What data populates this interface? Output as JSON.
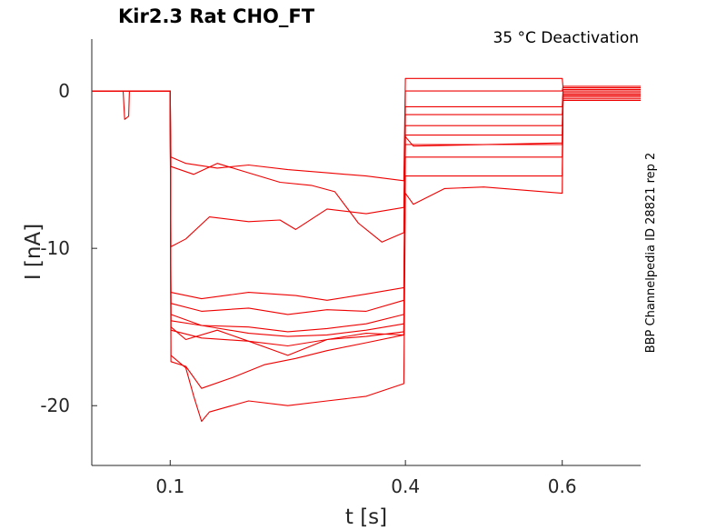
{
  "chart_data": {
    "type": "line",
    "title": "Kir2.3  Rat  CHO_FT",
    "annotation": "35 °C  Deactivation",
    "side_label": "BBP Channelpedia ID 28821 rep 2",
    "xlabel": "t [s]",
    "ylabel": "I [nA]",
    "xlim": [
      0.0,
      0.7
    ],
    "ylim": [
      -23.8,
      3.3
    ],
    "xticks": [
      0.1,
      0.4,
      0.6
    ],
    "xtick_labels": [
      "0.1",
      "0.4",
      "0.6"
    ],
    "yticks": [
      0,
      -10,
      -20
    ],
    "ytick_labels": [
      "0",
      "-10",
      "-20"
    ],
    "trace_color": "#ee0000",
    "series": [
      {
        "values": [
          [
            0.0,
            0
          ],
          [
            0.04,
            0
          ],
          [
            0.042,
            -1.8
          ],
          [
            0.047,
            -1.6
          ],
          [
            0.048,
            0
          ],
          [
            0.1,
            0
          ],
          [
            0.101,
            -4.2
          ],
          [
            0.12,
            -4.6
          ],
          [
            0.16,
            -4.9
          ],
          [
            0.2,
            -4.7
          ],
          [
            0.25,
            -5.0
          ],
          [
            0.3,
            -5.2
          ],
          [
            0.35,
            -5.4
          ],
          [
            0.398,
            -5.7
          ],
          [
            0.4,
            0.8
          ],
          [
            0.6,
            0.8
          ],
          [
            0.601,
            0.2
          ],
          [
            0.7,
            0.2
          ]
        ]
      },
      {
        "values": [
          [
            0.0,
            0
          ],
          [
            0.1,
            0
          ],
          [
            0.101,
            -4.8
          ],
          [
            0.13,
            -5.3
          ],
          [
            0.16,
            -4.6
          ],
          [
            0.2,
            -5.2
          ],
          [
            0.24,
            -5.8
          ],
          [
            0.28,
            -6.0
          ],
          [
            0.31,
            -6.4
          ],
          [
            0.34,
            -8.4
          ],
          [
            0.37,
            -9.6
          ],
          [
            0.398,
            -9.0
          ],
          [
            0.4,
            0.0
          ],
          [
            0.6,
            0.0
          ],
          [
            0.601,
            0.3
          ],
          [
            0.7,
            0.3
          ]
        ]
      },
      {
        "values": [
          [
            0.0,
            0
          ],
          [
            0.1,
            0
          ],
          [
            0.101,
            -9.9
          ],
          [
            0.12,
            -9.4
          ],
          [
            0.15,
            -8.0
          ],
          [
            0.2,
            -8.3
          ],
          [
            0.24,
            -8.2
          ],
          [
            0.26,
            -8.8
          ],
          [
            0.3,
            -7.5
          ],
          [
            0.35,
            -7.8
          ],
          [
            0.398,
            -7.4
          ],
          [
            0.4,
            -1.0
          ],
          [
            0.6,
            -1.0
          ],
          [
            0.601,
            0.1
          ],
          [
            0.7,
            0.1
          ]
        ]
      },
      {
        "values": [
          [
            0.0,
            0
          ],
          [
            0.1,
            0
          ],
          [
            0.101,
            -12.8
          ],
          [
            0.14,
            -13.2
          ],
          [
            0.2,
            -12.8
          ],
          [
            0.26,
            -13.0
          ],
          [
            0.3,
            -13.3
          ],
          [
            0.35,
            -12.9
          ],
          [
            0.398,
            -12.5
          ],
          [
            0.4,
            -1.5
          ],
          [
            0.6,
            -1.5
          ],
          [
            0.601,
            0.0
          ],
          [
            0.7,
            0.0
          ]
        ]
      },
      {
        "values": [
          [
            0.0,
            0
          ],
          [
            0.1,
            0
          ],
          [
            0.101,
            -13.5
          ],
          [
            0.14,
            -14.0
          ],
          [
            0.2,
            -13.8
          ],
          [
            0.25,
            -14.2
          ],
          [
            0.3,
            -13.9
          ],
          [
            0.35,
            -14.0
          ],
          [
            0.398,
            -13.3
          ],
          [
            0.4,
            -2.2
          ],
          [
            0.6,
            -2.2
          ],
          [
            0.601,
            -0.1
          ],
          [
            0.7,
            -0.1
          ]
        ]
      },
      {
        "values": [
          [
            0.0,
            0
          ],
          [
            0.1,
            0
          ],
          [
            0.101,
            -14.2
          ],
          [
            0.14,
            -14.9
          ],
          [
            0.2,
            -15.0
          ],
          [
            0.25,
            -15.3
          ],
          [
            0.3,
            -15.1
          ],
          [
            0.35,
            -14.8
          ],
          [
            0.398,
            -14.2
          ],
          [
            0.4,
            -2.8
          ],
          [
            0.6,
            -2.8
          ],
          [
            0.601,
            -0.2
          ],
          [
            0.7,
            -0.2
          ]
        ]
      },
      {
        "values": [
          [
            0.0,
            0
          ],
          [
            0.1,
            0
          ],
          [
            0.101,
            -14.6
          ],
          [
            0.14,
            -14.9
          ],
          [
            0.2,
            -15.4
          ],
          [
            0.25,
            -15.6
          ],
          [
            0.3,
            -15.5
          ],
          [
            0.35,
            -15.2
          ],
          [
            0.398,
            -14.8
          ],
          [
            0.4,
            -3.4
          ],
          [
            0.6,
            -3.4
          ],
          [
            0.601,
            -0.3
          ],
          [
            0.7,
            -0.3
          ]
        ]
      },
      {
        "values": [
          [
            0.0,
            0
          ],
          [
            0.1,
            0
          ],
          [
            0.101,
            -15.0
          ],
          [
            0.12,
            -15.8
          ],
          [
            0.16,
            -15.2
          ],
          [
            0.2,
            -15.9
          ],
          [
            0.25,
            -16.2
          ],
          [
            0.3,
            -15.8
          ],
          [
            0.35,
            -15.6
          ],
          [
            0.398,
            -15.3
          ],
          [
            0.4,
            -4.2
          ],
          [
            0.6,
            -4.2
          ],
          [
            0.601,
            -0.3
          ],
          [
            0.7,
            -0.3
          ]
        ]
      },
      {
        "values": [
          [
            0.0,
            0
          ],
          [
            0.1,
            0
          ],
          [
            0.101,
            -15.2
          ],
          [
            0.14,
            -15.7
          ],
          [
            0.2,
            -15.9
          ],
          [
            0.25,
            -16.8
          ],
          [
            0.3,
            -15.8
          ],
          [
            0.35,
            -15.4
          ],
          [
            0.398,
            -15.5
          ],
          [
            0.4,
            -5.4
          ],
          [
            0.6,
            -5.4
          ],
          [
            0.601,
            -0.4
          ],
          [
            0.7,
            -0.4
          ]
        ]
      },
      {
        "values": [
          [
            0.0,
            0
          ],
          [
            0.1,
            0
          ],
          [
            0.101,
            -17.2
          ],
          [
            0.12,
            -17.5
          ],
          [
            0.14,
            -18.9
          ],
          [
            0.18,
            -18.2
          ],
          [
            0.22,
            -17.4
          ],
          [
            0.26,
            -17.0
          ],
          [
            0.3,
            -16.5
          ],
          [
            0.35,
            -16.0
          ],
          [
            0.398,
            -15.5
          ],
          [
            0.4,
            -2.9
          ],
          [
            0.41,
            -3.5
          ],
          [
            0.6,
            -3.3
          ],
          [
            0.601,
            -0.5
          ],
          [
            0.7,
            -0.5
          ]
        ]
      },
      {
        "values": [
          [
            0.0,
            0
          ],
          [
            0.1,
            0
          ],
          [
            0.101,
            -16.8
          ],
          [
            0.12,
            -17.6
          ],
          [
            0.13,
            -19.4
          ],
          [
            0.14,
            -21.0
          ],
          [
            0.15,
            -20.4
          ],
          [
            0.2,
            -19.7
          ],
          [
            0.25,
            -20.0
          ],
          [
            0.3,
            -19.7
          ],
          [
            0.35,
            -19.4
          ],
          [
            0.398,
            -18.6
          ],
          [
            0.4,
            -6.5
          ],
          [
            0.41,
            -7.2
          ],
          [
            0.45,
            -6.2
          ],
          [
            0.5,
            -6.1
          ],
          [
            0.6,
            -6.5
          ],
          [
            0.601,
            -0.6
          ],
          [
            0.7,
            -0.6
          ]
        ]
      }
    ]
  }
}
